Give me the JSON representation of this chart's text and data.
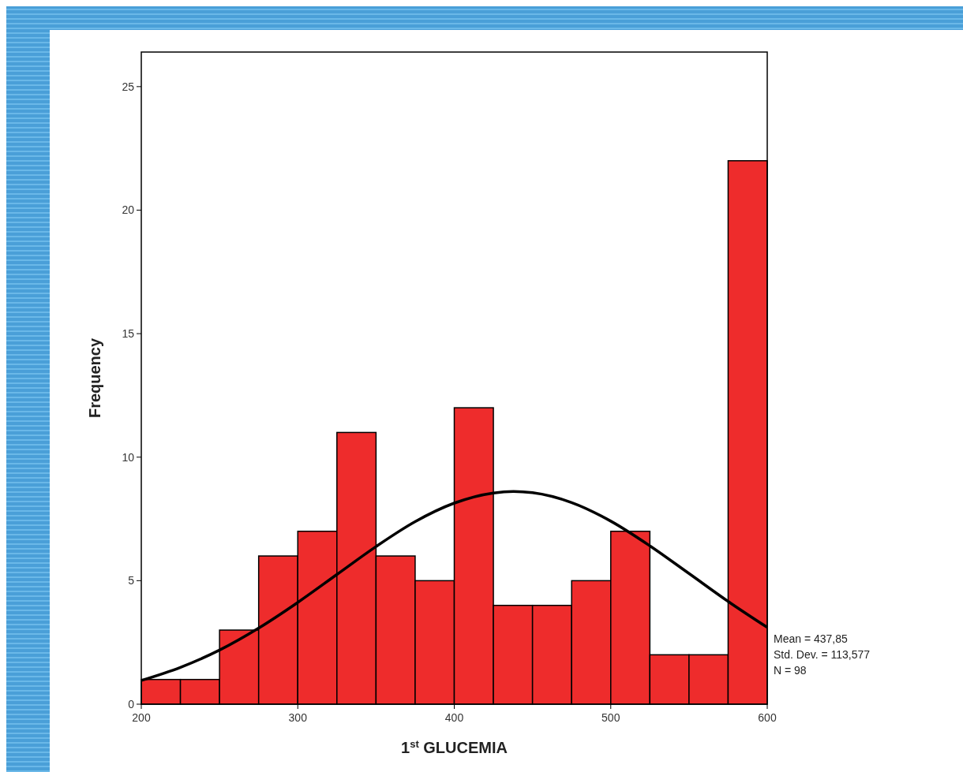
{
  "chart_data": {
    "type": "histogram",
    "xlabel": "1$^{st}$ GLUCEMIA",
    "ylabel": "Frequency",
    "bins": [
      200,
      225,
      250,
      275,
      300,
      325,
      350,
      375,
      400,
      425,
      450,
      475,
      500,
      525,
      550,
      575,
      600
    ],
    "values": [
      1,
      1,
      3,
      6,
      7,
      11,
      6,
      5,
      12,
      4,
      4,
      5,
      7,
      2,
      2,
      22
    ],
    "color": "#ee2c2c",
    "series": [
      {
        "type": "line",
        "color": "#000000",
        "x": [
          200,
          225,
          250,
          275,
          300,
          325,
          350,
          375,
          400,
          425,
          437.85,
          450,
          475,
          500,
          525,
          550,
          575,
          600
        ],
        "values": [
          0.96,
          1.49,
          2.19,
          3.08,
          4.12,
          5.25,
          6.38,
          7.39,
          8.14,
          8.55,
          8.61,
          8.56,
          8.16,
          7.41,
          6.41,
          5.29,
          4.16,
          3.11
        ]
      }
    ],
    "xlim": [
      200,
      600
    ],
    "xticks": [
      200,
      300,
      400,
      500,
      600
    ],
    "ylim": [
      0,
      26.4
    ],
    "yticks": [
      0,
      5,
      10,
      15,
      20,
      25
    ],
    "grid": false,
    "annotations": [
      "Mean = 437,85",
      "Std. Dev. = 113,577",
      "N = 98"
    ]
  }
}
